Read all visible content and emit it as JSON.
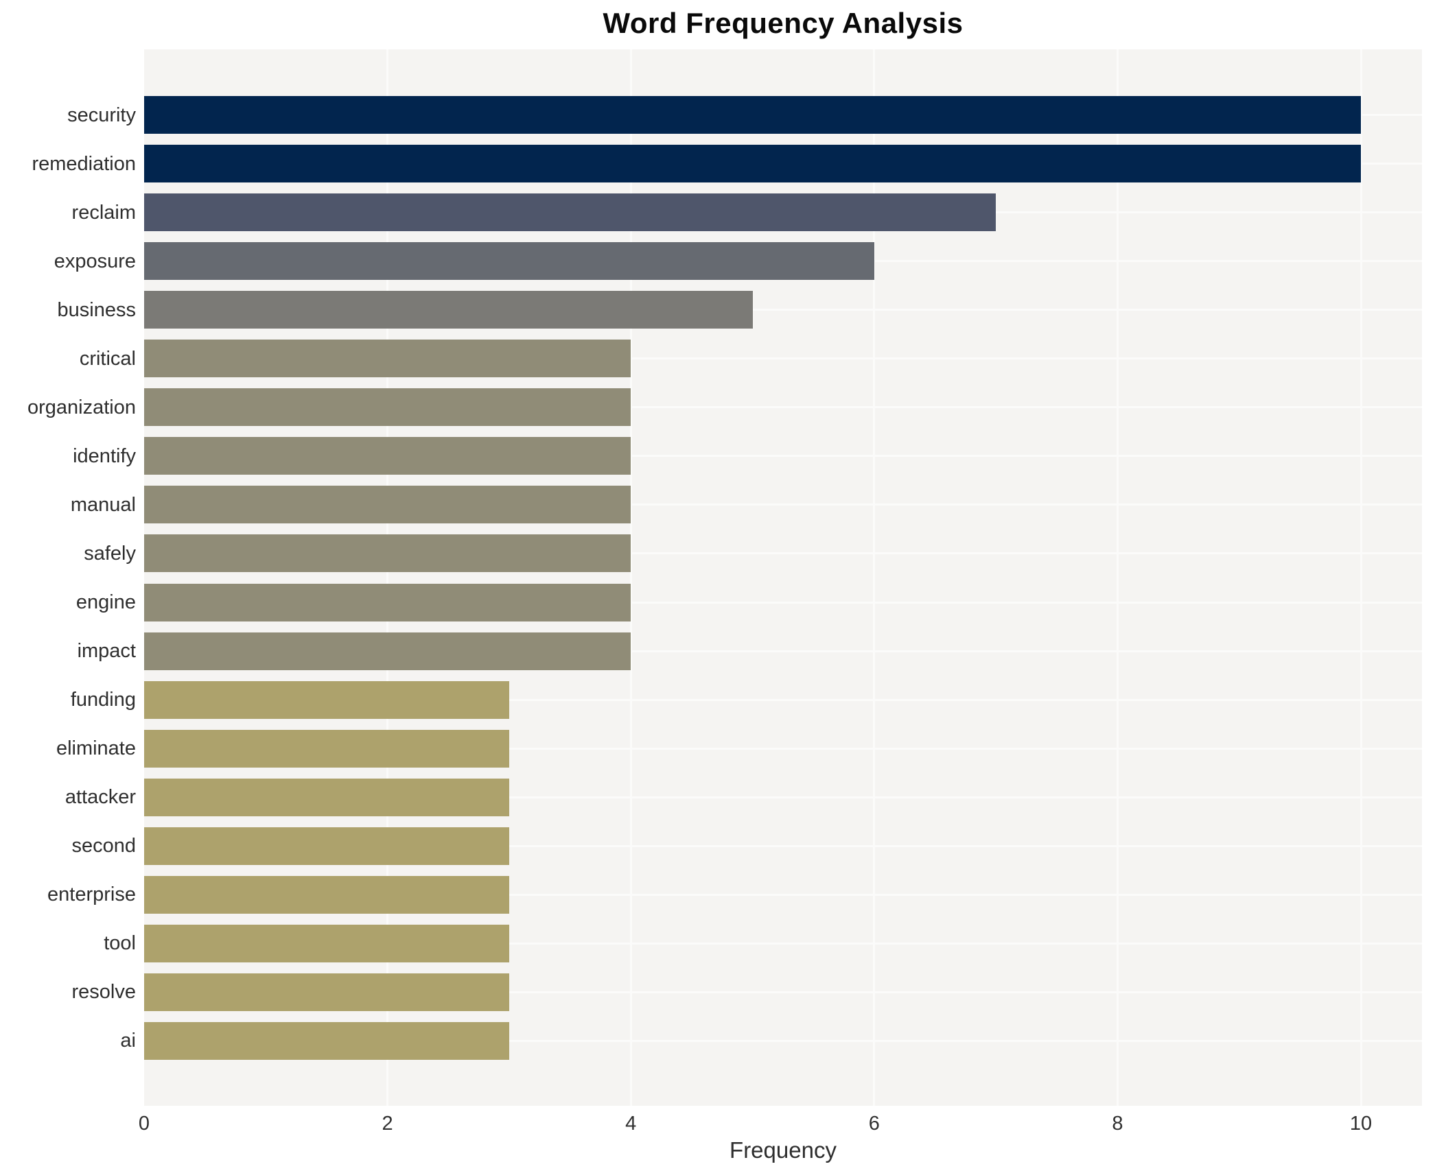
{
  "title": "Word Frequency Analysis",
  "xaxis": {
    "label": "Frequency",
    "ticks": [
      0,
      2,
      4,
      6,
      8,
      10
    ]
  },
  "chart_data": {
    "type": "bar",
    "orientation": "horizontal",
    "title": "Word Frequency Analysis",
    "xlabel": "Frequency",
    "ylabel": "",
    "xlim": [
      0,
      10.5
    ],
    "grid": "white gridlines on light-gray panel",
    "legend": "none",
    "categories": [
      "security",
      "remediation",
      "reclaim",
      "exposure",
      "business",
      "critical",
      "organization",
      "identify",
      "manual",
      "safely",
      "engine",
      "impact",
      "funding",
      "eliminate",
      "attacker",
      "second",
      "enterprise",
      "tool",
      "resolve",
      "ai"
    ],
    "values": [
      10,
      10,
      7,
      6,
      5,
      4,
      4,
      4,
      4,
      4,
      4,
      4,
      3,
      3,
      3,
      3,
      3,
      3,
      3,
      3
    ],
    "bar_colors": [
      "#02254e",
      "#02254e",
      "#4f566b",
      "#666a71",
      "#7b7a76",
      "#908c77",
      "#908c77",
      "#908c77",
      "#908c77",
      "#908c77",
      "#908c77",
      "#908c77",
      "#ada26c",
      "#ada26c",
      "#ada26c",
      "#ada26c",
      "#ada26c",
      "#ada26c",
      "#ada26c",
      "#ada26c"
    ],
    "colors": {
      "panel_background": "#f5f4f2",
      "grid": "#fbfbfa",
      "label_text": "#2e2e2e",
      "tick_text": "#303030",
      "title_text": "#0a0a0a",
      "page_background": "#ffffff"
    }
  }
}
